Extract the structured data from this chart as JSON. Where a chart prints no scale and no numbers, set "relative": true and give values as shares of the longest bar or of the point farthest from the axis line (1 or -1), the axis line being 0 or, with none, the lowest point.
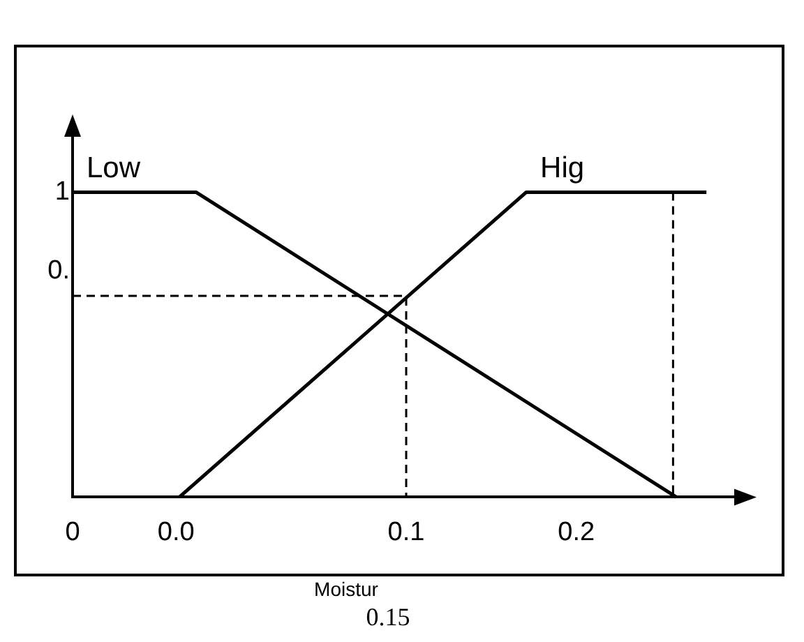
{
  "chart_data": {
    "type": "line",
    "xlabel": "Moistur",
    "relative": true,
    "annotations": [
      "0.15",
      "1",
      "0."
    ],
    "xlim": [
      0,
      0.2
    ],
    "xticks": [
      0,
      {
        "value": 0.031,
        "label": "0.0"
      },
      0.1,
      {
        "value": 0.151,
        "label": "0.2"
      }
    ],
    "grid": false,
    "marker": "none",
    "series": [
      {
        "name": "Low",
        "color": "#000000",
        "x": [
          0,
          0.037,
          0.181
        ],
        "values": [
          1,
          1,
          0
        ],
        "line_style": "solid"
      },
      {
        "name": "Hig",
        "color": "#000000",
        "x": [
          0.032,
          0.136,
          0.19
        ],
        "values": [
          0,
          1,
          1
        ],
        "line_style": "solid"
      },
      {
        "color": "#000000",
        "x": [
          0,
          0.1,
          0.1
        ],
        "values": [
          0.66,
          0.66,
          0
        ],
        "line_style": "dashed"
      },
      {
        "color": "#000000",
        "x": [
          0.18,
          0.18
        ],
        "values": [
          1,
          0
        ],
        "line_style": "dashed"
      }
    ]
  }
}
